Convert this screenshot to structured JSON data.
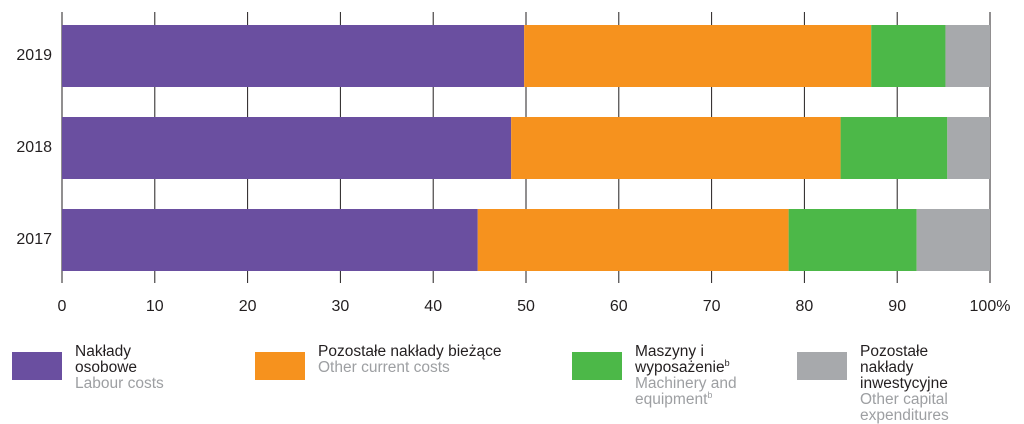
{
  "chart_data": {
    "type": "stacked-barh",
    "categories": [
      "2019",
      "2018",
      "2017"
    ],
    "series": [
      {
        "name": "Nakłady osobowe",
        "name_en": "Labour costs",
        "color": "#6a4fa0",
        "values": [
          49.8,
          48.4,
          44.8
        ]
      },
      {
        "name": "Pozostałe nakłady bieżące",
        "name_en": "Other current costs",
        "color": "#f6921e",
        "values": [
          37.4,
          35.5,
          33.5
        ]
      },
      {
        "name": "Maszyny i wyposażenie",
        "name_en": "Machinery and equipment",
        "note": "b",
        "color": "#4cb848",
        "values": [
          8.0,
          11.5,
          13.8
        ]
      },
      {
        "name": "Pozostałe nakłady inwestycyjne",
        "name_en": "Other capital expenditures",
        "color": "#a7a9ac",
        "values": [
          4.8,
          4.6,
          7.9
        ]
      }
    ],
    "xlim": [
      0,
      100
    ],
    "xticks": [
      0,
      10,
      20,
      30,
      40,
      50,
      60,
      70,
      80,
      90,
      {
        "value": 100,
        "label": "100%"
      }
    ],
    "grid": true
  }
}
